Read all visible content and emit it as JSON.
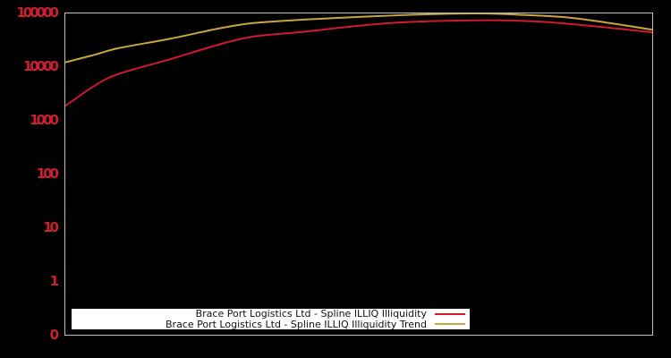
{
  "window": {
    "background": "#000000"
  },
  "axes": {
    "tick_color": "#cd1f2d",
    "frame_color": "#bdbdbd"
  },
  "legend": {
    "items": [
      {
        "label": "Brace Port Logistics Ltd - Spline ILLIQ Illiquidity",
        "color": "#d0182e"
      },
      {
        "label": "Brace Port Logistics Ltd - Spline ILLIQ Illiquidity Trend",
        "color": "#c8a63c"
      }
    ]
  },
  "chart_data": {
    "type": "line",
    "title": "",
    "xlabel": "",
    "ylabel": "",
    "yscale": "log",
    "y_tick_labels": [
      "100000",
      "10000",
      "1000",
      "100",
      "10",
      "1",
      "0"
    ],
    "x_tick_labels": [],
    "ylim_top": 100000,
    "grid": false,
    "legend_position": "bottom-left",
    "series": [
      {
        "name": "Brace Port Logistics Ltd - Spline ILLIQ Illiquidity",
        "color": "#d0182e",
        "points": [
          [
            0.0,
            1900
          ],
          [
            0.05,
            4500
          ],
          [
            0.09,
            7400
          ],
          [
            0.18,
            14200
          ],
          [
            0.26,
            26000
          ],
          [
            0.32,
            37000
          ],
          [
            0.41,
            46000
          ],
          [
            0.5,
            59000
          ],
          [
            0.58,
            69000
          ],
          [
            0.7,
            74500
          ],
          [
            0.8,
            71000
          ],
          [
            0.9,
            58000
          ],
          [
            1.0,
            44500
          ]
        ]
      },
      {
        "name": "Brace Port Logistics Ltd - Spline ILLIQ Illiquidity Trend",
        "color": "#c8a63c",
        "points": [
          [
            0.0,
            12300
          ],
          [
            0.05,
            17000
          ],
          [
            0.09,
            22500
          ],
          [
            0.18,
            34000
          ],
          [
            0.26,
            52000
          ],
          [
            0.32,
            66000
          ],
          [
            0.41,
            77000
          ],
          [
            0.5,
            86000
          ],
          [
            0.6,
            95000
          ],
          [
            0.7,
            100000
          ],
          [
            0.78,
            94000
          ],
          [
            0.87,
            81000
          ],
          [
            1.0,
            50000
          ]
        ]
      }
    ]
  }
}
